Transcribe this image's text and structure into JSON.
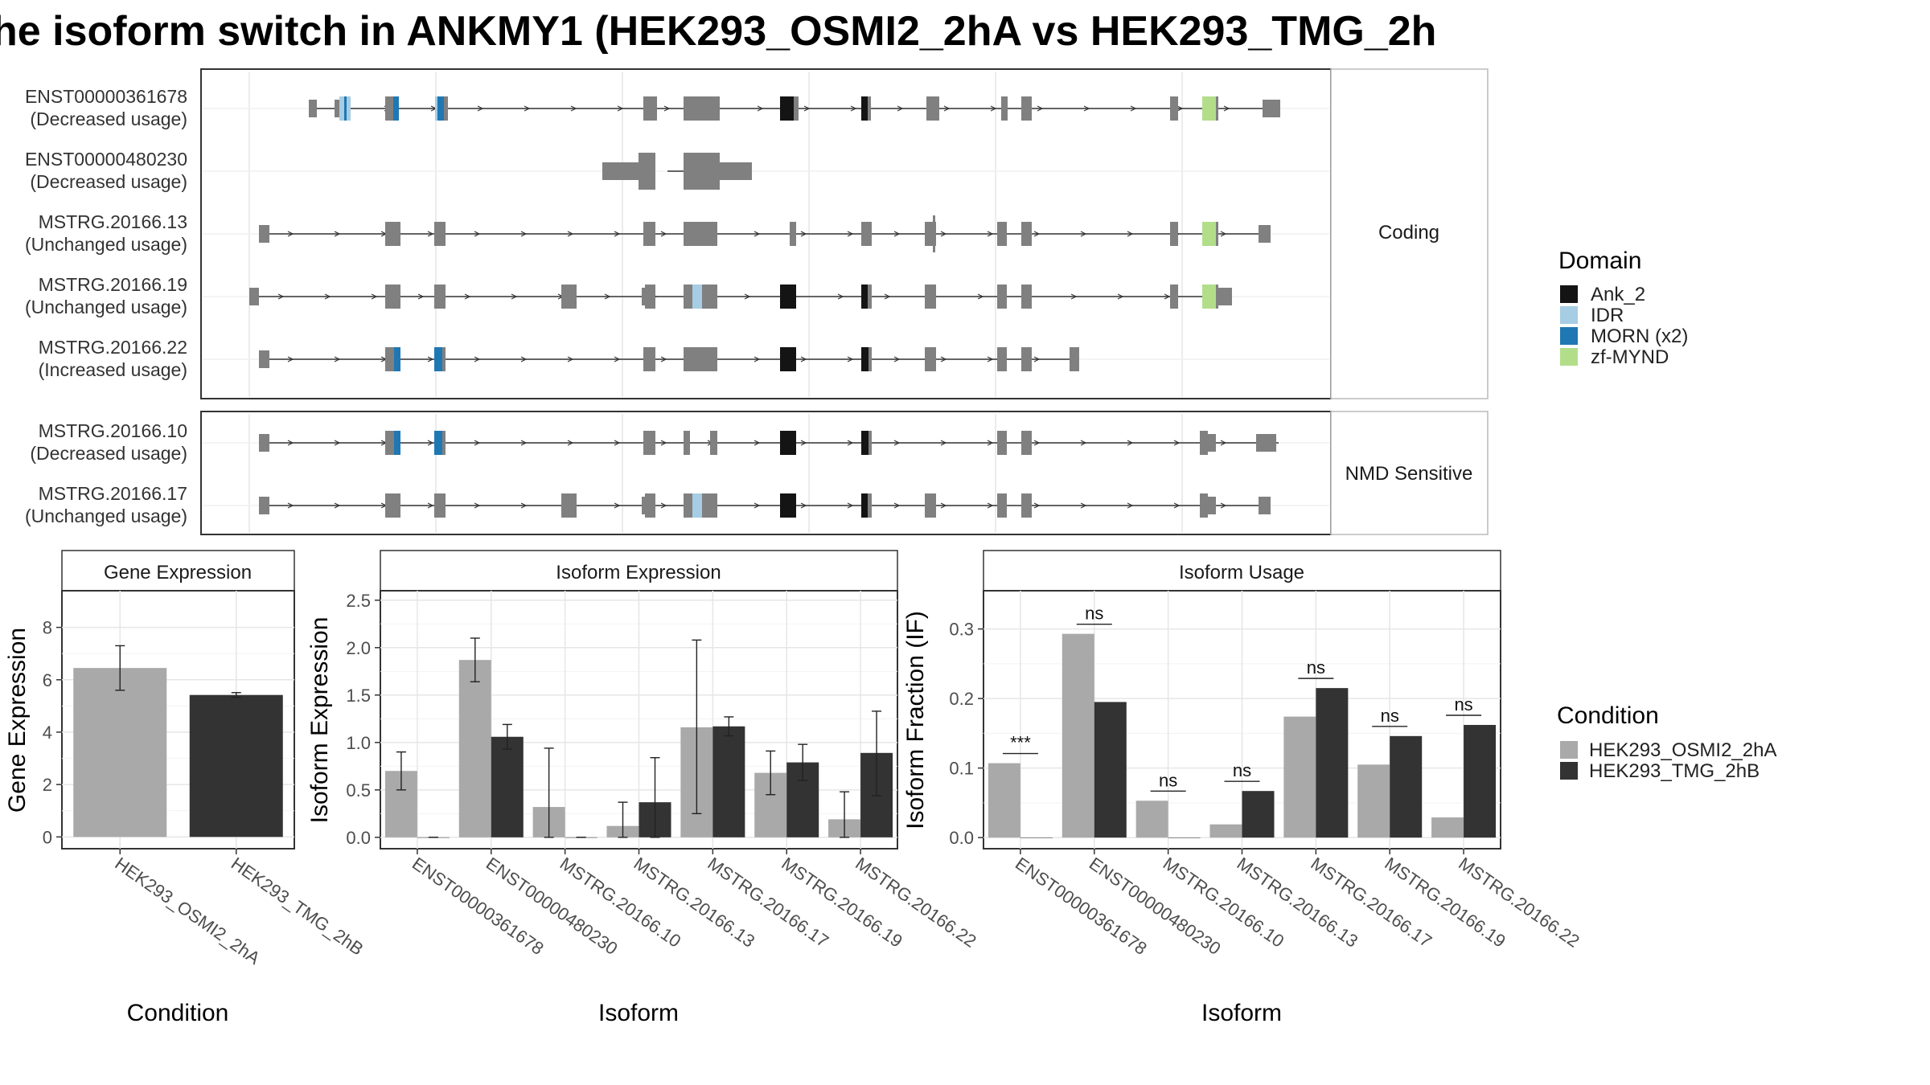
{
  "title": "he isoform switch in ANKMY1 (HEK293_OSMI2_2hA vs HEK293_TMG_2h",
  "colors": {
    "exon": "#808080",
    "Ank_2": "#141414",
    "IDR": "#a6cde3",
    "MORN (x2)": "#1f78b4",
    "zf-MYND": "#b2de8a",
    "cond_a": "#a9a9a9",
    "cond_b": "#333333"
  },
  "structure": {
    "coding_label": "Coding",
    "nmd_label": "NMD Sensitive",
    "isoforms": [
      {
        "id": "ENST00000361678",
        "usage": "(Decreased usage)"
      },
      {
        "id": "ENST00000480230",
        "usage": "(Decreased usage)"
      },
      {
        "id": "MSTRG.20166.13",
        "usage": "(Unchanged usage)"
      },
      {
        "id": "MSTRG.20166.19",
        "usage": "(Unchanged usage)"
      },
      {
        "id": "MSTRG.20166.22",
        "usage": "(Increased usage)"
      }
    ],
    "nmd_isoforms": [
      {
        "id": "MSTRG.20166.10",
        "usage": "(Decreased usage)"
      },
      {
        "id": "MSTRG.20166.17",
        "usage": "(Unchanged usage)"
      }
    ]
  },
  "legend_domain": {
    "title": "Domain",
    "items": [
      "Ank_2",
      "IDR",
      "MORN (x2)",
      "zf-MYND"
    ]
  },
  "legend_condition": {
    "title": "Condition",
    "items": [
      "HEK293_OSMI2_2hA",
      "HEK293_TMG_2hB"
    ]
  },
  "chart_data": [
    {
      "type": "bar",
      "title": "Gene Expression",
      "xlabel": "Condition",
      "ylabel": "Gene Expression",
      "categories": [
        "HEK293_OSMI2_2hA",
        "HEK293_TMG_2hB"
      ],
      "values": [
        6.45,
        5.42
      ],
      "error_low": [
        5.6,
        5.33
      ],
      "error_high": [
        7.3,
        5.51
      ],
      "ylim": [
        -0.45,
        9.4
      ],
      "yticks": [
        0,
        2,
        4,
        6,
        8
      ]
    },
    {
      "type": "bar",
      "title": "Isoform Expression",
      "xlabel": "Isoform",
      "ylabel": "Isoform Expression",
      "categories": [
        "ENST00000361678",
        "ENST00000480230",
        "MSTRG.20166.10",
        "MSTRG.20166.13",
        "MSTRG.20166.17",
        "MSTRG.20166.19",
        "MSTRG.20166.22"
      ],
      "series": [
        {
          "name": "HEK293_OSMI2_2hA",
          "values": [
            0.7,
            1.87,
            0.32,
            0.12,
            1.16,
            0.68,
            0.19
          ],
          "error_low": [
            0.5,
            1.64,
            0.0,
            0.0,
            0.25,
            0.45,
            0.0
          ],
          "error_high": [
            0.9,
            2.1,
            0.94,
            0.37,
            2.08,
            0.91,
            0.48
          ]
        },
        {
          "name": "HEK293_TMG_2hB",
          "values": [
            0.0,
            1.06,
            0.0,
            0.37,
            1.17,
            0.79,
            0.89
          ],
          "error_low": [
            0.0,
            0.93,
            0.0,
            0.0,
            1.07,
            0.6,
            0.44
          ],
          "error_high": [
            0.0,
            1.19,
            0.0,
            0.84,
            1.27,
            0.98,
            1.33
          ]
        }
      ],
      "ylim": [
        -0.12,
        2.6
      ],
      "yticks": [
        0.0,
        0.5,
        1.0,
        1.5,
        2.0,
        2.5
      ]
    },
    {
      "type": "bar",
      "title": "Isoform Usage",
      "xlabel": "Isoform",
      "ylabel": "Isoform Fraction (IF)",
      "categories": [
        "ENST00000361678",
        "ENST00000480230",
        "MSTRG.20166.10",
        "MSTRG.20166.13",
        "MSTRG.20166.17",
        "MSTRG.20166.19",
        "MSTRG.20166.22"
      ],
      "series": [
        {
          "name": "HEK293_OSMI2_2hA",
          "values": [
            0.107,
            0.293,
            0.053,
            0.019,
            0.174,
            0.105,
            0.029
          ]
        },
        {
          "name": "HEK293_TMG_2hB",
          "values": [
            0.0,
            0.195,
            0.0,
            0.067,
            0.215,
            0.146,
            0.162
          ]
        }
      ],
      "significance": [
        "***",
        "ns",
        "ns",
        "ns",
        "ns",
        "ns",
        "ns"
      ],
      "ylim": [
        -0.016,
        0.355
      ],
      "yticks": [
        0.0,
        0.1,
        0.2,
        0.3
      ]
    }
  ]
}
